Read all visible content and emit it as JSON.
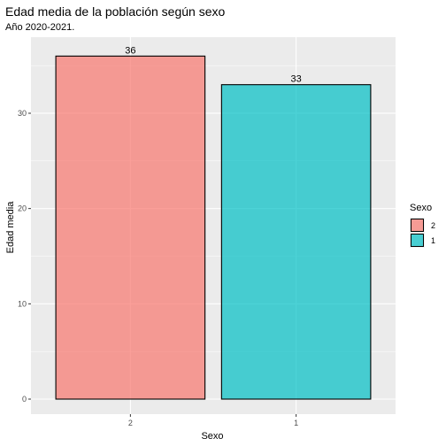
{
  "chart_data": {
    "type": "bar",
    "title": "Edad media de la población según sexo",
    "subtitle": "Año 2020-2021.",
    "xlabel": "Sexo",
    "ylabel": "Edad media",
    "categories": [
      "2",
      "1"
    ],
    "values": [
      36,
      33
    ],
    "data_labels": [
      "36",
      "33"
    ],
    "colors": [
      "#F8766D",
      "#00BFC4"
    ],
    "bar_alpha": 0.7,
    "ylim": [
      0,
      37.8
    ],
    "yticks": [
      0,
      10,
      20,
      30
    ],
    "grid": true,
    "legend": {
      "title": "Sexo",
      "position": "right",
      "entries": [
        {
          "label": "2",
          "color": "#F8766D"
        },
        {
          "label": "1",
          "color": "#00BFC4"
        }
      ]
    }
  }
}
